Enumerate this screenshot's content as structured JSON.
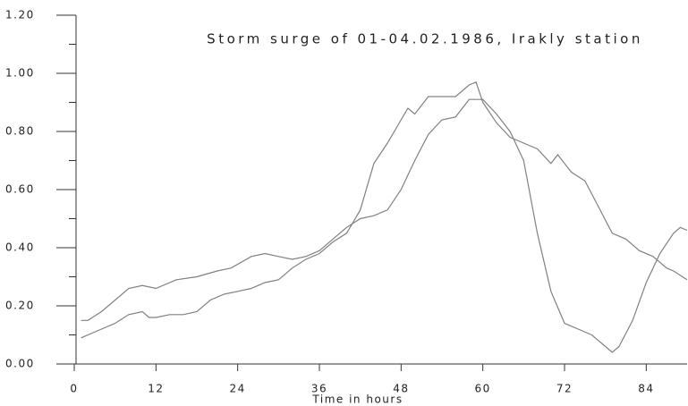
{
  "chart_data": {
    "type": "line",
    "title": "Storm surge of 01-04.02.1986, Irakly station",
    "x_label": "Time in hours",
    "xlim": [
      0,
      90
    ],
    "xticks": [
      0,
      12,
      24,
      36,
      48,
      60,
      72,
      84
    ],
    "ylim": [
      0,
      1.2
    ],
    "yticks": [
      {
        "value": 0,
        "label": "0.00"
      },
      {
        "value": 0.2,
        "label": "0.20"
      },
      {
        "value": 0.4,
        "label": "0.40"
      },
      {
        "value": 0.6,
        "label": "0.60"
      },
      {
        "value": 0.8,
        "label": "0.80"
      },
      {
        "value": 1.0,
        "label": "1.00"
      },
      {
        "value": 1.2,
        "label": "1.20"
      }
    ],
    "grid": false,
    "series": [
      {
        "color": "#808080",
        "x": [
          1,
          4,
          6,
          8,
          10,
          11,
          12,
          14,
          16,
          18,
          20,
          22,
          24,
          26,
          28,
          30,
          32,
          34,
          36,
          38,
          40,
          41,
          42,
          44,
          46,
          48,
          49,
          50,
          52,
          54,
          56,
          58,
          59,
          60,
          62,
          64,
          66,
          68,
          70,
          71,
          73,
          75,
          77,
          79,
          81,
          83,
          85,
          87,
          88,
          90
        ],
        "values": [
          0.09,
          0.12,
          0.14,
          0.17,
          0.18,
          0.16,
          0.16,
          0.17,
          0.17,
          0.18,
          0.22,
          0.24,
          0.25,
          0.26,
          0.28,
          0.29,
          0.33,
          0.36,
          0.38,
          0.42,
          0.45,
          0.49,
          0.53,
          0.69,
          0.76,
          0.84,
          0.88,
          0.86,
          0.92,
          0.92,
          0.92,
          0.96,
          0.97,
          0.9,
          0.83,
          0.78,
          0.76,
          0.74,
          0.69,
          0.72,
          0.66,
          0.63,
          0.54,
          0.45,
          0.43,
          0.39,
          0.37,
          0.33,
          0.32,
          0.29
        ]
      },
      {
        "color": "#808080",
        "x": [
          1,
          2,
          4,
          6,
          8,
          10,
          12,
          15,
          18,
          21,
          23,
          26,
          28,
          30,
          32,
          34,
          36,
          38,
          40,
          42,
          44,
          46,
          48,
          50,
          52,
          54,
          56,
          57,
          58,
          60,
          62,
          64,
          66,
          68,
          70,
          72,
          74,
          76,
          78,
          79,
          80,
          82,
          84,
          86,
          88,
          89,
          90
        ],
        "values": [
          0.15,
          0.15,
          0.18,
          0.22,
          0.26,
          0.27,
          0.26,
          0.29,
          0.3,
          0.32,
          0.33,
          0.37,
          0.38,
          0.37,
          0.36,
          0.37,
          0.39,
          0.43,
          0.47,
          0.5,
          0.51,
          0.53,
          0.6,
          0.7,
          0.79,
          0.84,
          0.85,
          0.88,
          0.91,
          0.91,
          0.86,
          0.8,
          0.7,
          0.45,
          0.25,
          0.14,
          0.12,
          0.1,
          0.06,
          0.04,
          0.06,
          0.15,
          0.28,
          0.38,
          0.45,
          0.47,
          0.46
        ]
      }
    ]
  }
}
